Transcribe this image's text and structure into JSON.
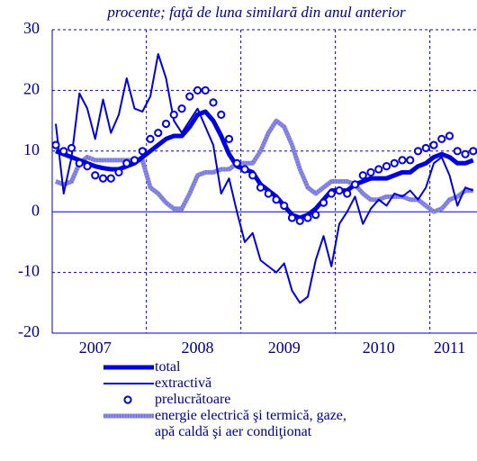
{
  "chart_data": {
    "type": "line",
    "subtitle": "procente; faţă de luna similară din anul anterior",
    "categories": [
      null,
      null,
      null,
      null,
      null,
      "2007",
      null,
      null,
      null,
      null,
      null,
      null,
      null,
      null,
      null,
      null,
      null,
      null,
      "2008",
      null,
      null,
      null,
      null,
      null,
      null,
      null,
      null,
      null,
      null,
      "2009",
      null,
      null,
      null,
      null,
      null,
      null,
      null,
      null,
      null,
      null,
      null,
      "2010",
      null,
      null,
      null,
      null,
      null,
      null,
      null,
      null,
      "2011",
      null,
      null,
      null
    ],
    "ylim": [
      -20,
      30
    ],
    "yticks": [
      -20,
      -10,
      0,
      10,
      20,
      30
    ],
    "grid": true,
    "series": [
      {
        "name": "total",
        "color": "#0000dd",
        "values": [
          10,
          9.5,
          9,
          8.5,
          8,
          7.5,
          7.2,
          7,
          7,
          7.5,
          8,
          9,
          10,
          11,
          12,
          12.5,
          12.5,
          14,
          16,
          16.5,
          15,
          12.5,
          9.5,
          7.5,
          7,
          6.5,
          4.5,
          3.5,
          2.5,
          1,
          -0.5,
          -1,
          -0.5,
          0.5,
          2,
          3.5,
          3.5,
          3.5,
          4.5,
          5,
          5.5,
          5.5,
          5.5,
          6,
          6.5,
          6.5,
          7.5,
          8,
          9,
          9.5,
          9,
          8,
          8,
          8.5
        ]
      },
      {
        "name": "extractivă",
        "color": "#0000dd",
        "values": [
          14.5,
          3,
          9,
          19.5,
          17,
          12,
          18.5,
          13,
          16,
          22,
          17,
          16.5,
          19,
          26,
          22,
          15,
          13,
          15,
          17,
          14,
          11,
          3,
          5.5,
          0,
          -5,
          -3.5,
          -8,
          -9,
          -10,
          -8.5,
          -13,
          -15,
          -14,
          -8,
          -4,
          -9,
          -2,
          0,
          2.5,
          -2,
          0.5,
          2,
          1,
          3,
          2.5,
          3.5,
          2,
          4,
          8,
          9,
          6,
          1,
          4,
          3.5
        ]
      },
      {
        "name": "prelucrătoare",
        "color": "#0000dd",
        "values": [
          11,
          10,
          10.5,
          8,
          7.5,
          6,
          5.5,
          5.5,
          6.5,
          8,
          8.5,
          10,
          12,
          13,
          14.5,
          16,
          17,
          19,
          20,
          20,
          18,
          16,
          12,
          8,
          7,
          6,
          4,
          3,
          2,
          1,
          -1,
          -1.5,
          -1,
          -0.5,
          1.5,
          3,
          3.5,
          3,
          4.5,
          6,
          6.5,
          7,
          7.5,
          8,
          8.5,
          8.5,
          10,
          10.5,
          11,
          12,
          12.5,
          10,
          9.5,
          10
        ]
      },
      {
        "name": "energie electrică şi termică, gaze,\napă caldă şi aer condiţionat",
        "color": "#8c8ce6",
        "values": [
          5,
          4.5,
          5,
          8,
          9,
          8.5,
          8.5,
          8.5,
          8.5,
          8.5,
          8.5,
          8.5,
          4,
          3,
          1.5,
          0.5,
          0.5,
          3,
          6,
          6.5,
          6.5,
          7,
          7,
          8,
          8,
          8,
          10,
          13,
          15,
          14,
          11,
          7,
          4,
          3,
          4,
          5,
          5,
          5,
          4.5,
          3,
          2,
          2,
          2.5,
          2.5,
          2.5,
          2,
          2,
          1,
          0,
          0.5,
          2,
          2.5,
          3.5,
          3.5
        ]
      }
    ]
  }
}
